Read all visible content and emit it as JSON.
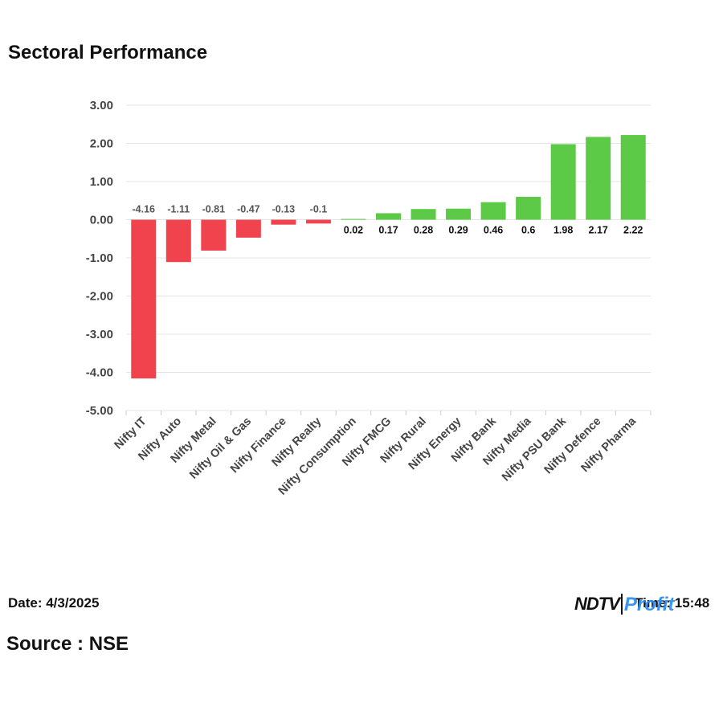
{
  "chart_data": {
    "type": "bar",
    "title": "Sectoral Performance",
    "xlabel": "",
    "ylabel": "",
    "ylim": [
      -5,
      3
    ],
    "yticks": [
      3,
      2,
      1,
      0,
      -1,
      -2,
      -3,
      -4,
      -5
    ],
    "ytick_labels": [
      "3.00",
      "2.00",
      "1.00",
      "0.00",
      "-1.00",
      "-2.00",
      "-3.00",
      "-4.00",
      "-5.00"
    ],
    "grid": true,
    "categories": [
      "Nifty IT",
      "Nifty Auto",
      "Nifty Metal",
      "Nifty Oil & Gas",
      "Nifty Finance",
      "Nifty Realty",
      "Nifty Consumption",
      "Nifty FMCG",
      "Nifty Rural",
      "Nifty Energy",
      "Nifty Bank",
      "Nifty Media",
      "Nifty PSU Bank",
      "Nifty Defence",
      "Nifty Pharma"
    ],
    "values": [
      -4.16,
      -1.11,
      -0.81,
      -0.47,
      -0.13,
      -0.1,
      0.02,
      0.17,
      0.28,
      0.29,
      0.46,
      0.6,
      1.98,
      2.17,
      2.22
    ],
    "value_labels": [
      "-4.16",
      "-1.11",
      "-0.81",
      "-0.47",
      "-0.13",
      "-0.1",
      "0.02",
      "0.17",
      "0.28",
      "0.29",
      "0.46",
      "0.6",
      "1.98",
      "2.17",
      "2.22"
    ],
    "colors": {
      "positive": "#5cc947",
      "negative": "#f0434d",
      "grid": "#e4e4e4",
      "axis_text": "#444444",
      "label_negative": "#555555",
      "label_positive": "#111111"
    }
  },
  "footer": {
    "date": "Date: 4/3/2025",
    "source": "Source : NSE",
    "time": "Time: 15:48"
  },
  "logo": {
    "brand": "NDTV",
    "product": "Profit"
  }
}
